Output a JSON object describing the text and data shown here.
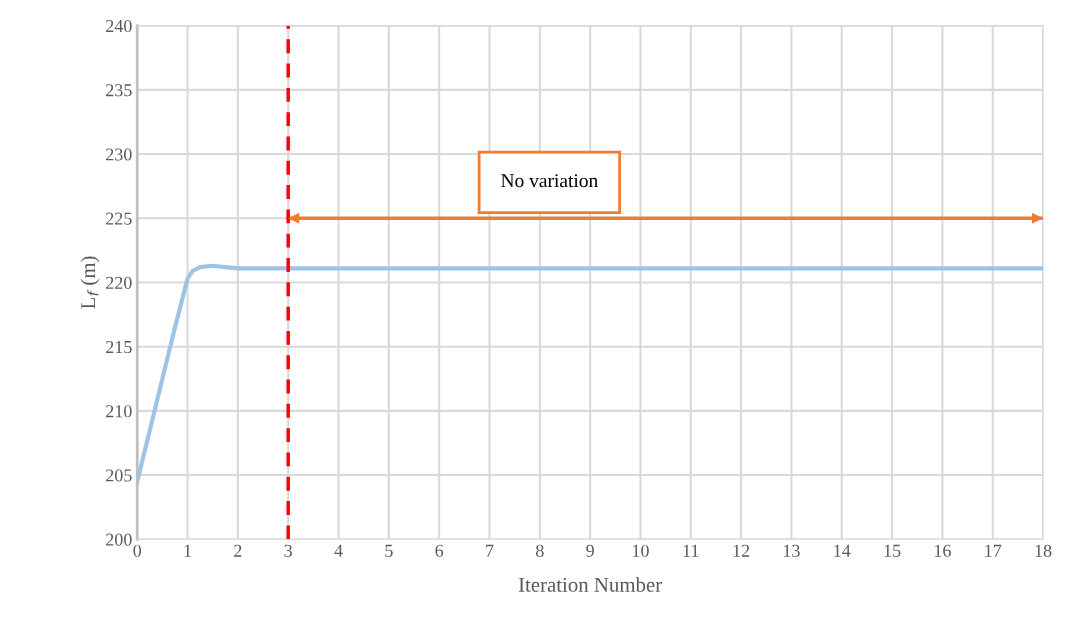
{
  "chart_data": {
    "type": "line",
    "xlabel": "Iteration Number",
    "ylabel": "L$_{f}$ (m)",
    "x": [
      0,
      0.25,
      0.5,
      0.75,
      1,
      1.1,
      1.25,
      1.5,
      1.75,
      2,
      2.5,
      3,
      4,
      5,
      6,
      7,
      8,
      9,
      10,
      11,
      12,
      13,
      14,
      15,
      16,
      17,
      18
    ],
    "series": [
      {
        "color": "#9dc3e6",
        "values": [
          204.5,
          208.5,
          212.5,
          216.5,
          220.3,
          220.9,
          221.2,
          221.3,
          221.2,
          221.1,
          221.1,
          221.1,
          221.1,
          221.1,
          221.1,
          221.1,
          221.1,
          221.1,
          221.1,
          221.1,
          221.1,
          221.1,
          221.1,
          221.1,
          221.1,
          221.1,
          221.1
        ]
      },
      {
        "type": "line",
        "x": [
          3,
          18
        ],
        "color": "#ed7d31",
        "values": [
          225,
          225
        ]
      }
    ],
    "xlim": [
      0,
      18
    ],
    "xticks": [
      0,
      1,
      2,
      3,
      4,
      5,
      6,
      7,
      8,
      9,
      10,
      11,
      12,
      13,
      14,
      15,
      16,
      17,
      18
    ],
    "ylim": [
      200,
      240
    ],
    "yticks": [
      200,
      205,
      210,
      215,
      220,
      225,
      230,
      235,
      240
    ],
    "grid": true,
    "marker": "none",
    "line_style": "solid",
    "ref_lines": [
      {
        "axis": "x",
        "value": 3,
        "color": "#ff0000",
        "line_style": "dashed"
      }
    ],
    "annotations": [
      "No variation"
    ]
  }
}
